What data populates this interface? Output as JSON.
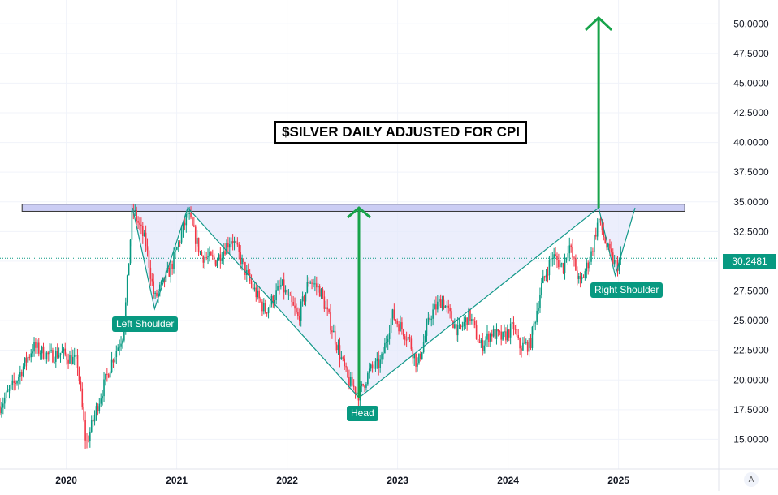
{
  "chart_data": {
    "type": "candlestick",
    "title": "$SILVER DAILY ADJUSTED FOR CPI",
    "xlabel": "",
    "ylabel": "",
    "x_ticks": [
      "2020",
      "2021",
      "2022",
      "2023",
      "2024",
      "2025"
    ],
    "y_ticks": [
      "15.0000",
      "17.5000",
      "20.0000",
      "22.5000",
      "25.0000",
      "27.5000",
      "30.0000",
      "32.5000",
      "35.0000",
      "37.5000",
      "40.0000",
      "42.5000",
      "45.0000",
      "47.5000",
      "50.0000"
    ],
    "ylim": [
      12.5,
      52
    ],
    "xlim": [
      2019.4,
      2025.9
    ],
    "grid": true,
    "last_price": "30.2481",
    "price_anchors": [
      [
        2019.4,
        17.8
      ],
      [
        2019.55,
        20.0
      ],
      [
        2019.7,
        22.8
      ],
      [
        2019.85,
        22.0
      ],
      [
        2019.95,
        22.3
      ],
      [
        2020.1,
        21.5
      ],
      [
        2020.18,
        14.5
      ],
      [
        2020.28,
        17.8
      ],
      [
        2020.42,
        21.8
      ],
      [
        2020.52,
        24.0
      ],
      [
        2020.6,
        34.5
      ],
      [
        2020.72,
        31.5
      ],
      [
        2020.8,
        26.8
      ],
      [
        2020.95,
        29.5
      ],
      [
        2021.1,
        34.0
      ],
      [
        2021.22,
        30.5
      ],
      [
        2021.35,
        30.0
      ],
      [
        2021.5,
        32.0
      ],
      [
        2021.65,
        28.5
      ],
      [
        2021.8,
        25.8
      ],
      [
        2021.95,
        28.0
      ],
      [
        2022.1,
        25.2
      ],
      [
        2022.2,
        28.5
      ],
      [
        2022.3,
        27.5
      ],
      [
        2022.45,
        23.0
      ],
      [
        2022.55,
        20.0
      ],
      [
        2022.65,
        18.8
      ],
      [
        2022.75,
        20.8
      ],
      [
        2022.85,
        21.5
      ],
      [
        2022.95,
        25.5
      ],
      [
        2023.1,
        23.5
      ],
      [
        2023.18,
        21.2
      ],
      [
        2023.3,
        25.5
      ],
      [
        2023.4,
        26.8
      ],
      [
        2023.55,
        24.0
      ],
      [
        2023.65,
        25.5
      ],
      [
        2023.75,
        22.8
      ],
      [
        2023.85,
        24.0
      ],
      [
        2023.95,
        23.5
      ],
      [
        2024.05,
        24.5
      ],
      [
        2024.1,
        22.8
      ],
      [
        2024.2,
        23.0
      ],
      [
        2024.3,
        27.8
      ],
      [
        2024.4,
        30.5
      ],
      [
        2024.5,
        29.5
      ],
      [
        2024.55,
        31.5
      ],
      [
        2024.65,
        28.0
      ],
      [
        2024.75,
        30.5
      ],
      [
        2024.82,
        33.6
      ],
      [
        2024.9,
        31.0
      ],
      [
        2024.98,
        29.5
      ],
      [
        2025.02,
        30.2
      ]
    ],
    "annotations": {
      "neckline": {
        "y_range": [
          34.2,
          34.8
        ],
        "x_range": [
          2019.6,
          2025.6
        ]
      },
      "pattern_points": [
        [
          2020.6,
          34.5
        ],
        [
          2020.8,
          26.0
        ],
        [
          2021.1,
          34.5
        ],
        [
          2022.65,
          18.5
        ],
        [
          2024.82,
          34.5
        ],
        [
          2024.97,
          28.8
        ],
        [
          2025.15,
          34.5
        ]
      ],
      "arrows": [
        {
          "x": 2022.65,
          "from": 18.5,
          "to": 34.5
        },
        {
          "x": 2024.82,
          "from": 34.5,
          "to": 50.5
        }
      ],
      "labels": {
        "left_shoulder": "Left Shoulder",
        "head": "Head",
        "right_shoulder": "Right Shoulder"
      }
    },
    "colors": {
      "up": "#089981",
      "down": "#f23645",
      "arrow": "#17a34a",
      "pattern_fill": "#e5e8fb",
      "pattern_line": "#14998a",
      "neckline_fill": "#cbcdf4"
    }
  },
  "controls": {
    "auto_label": "A"
  }
}
